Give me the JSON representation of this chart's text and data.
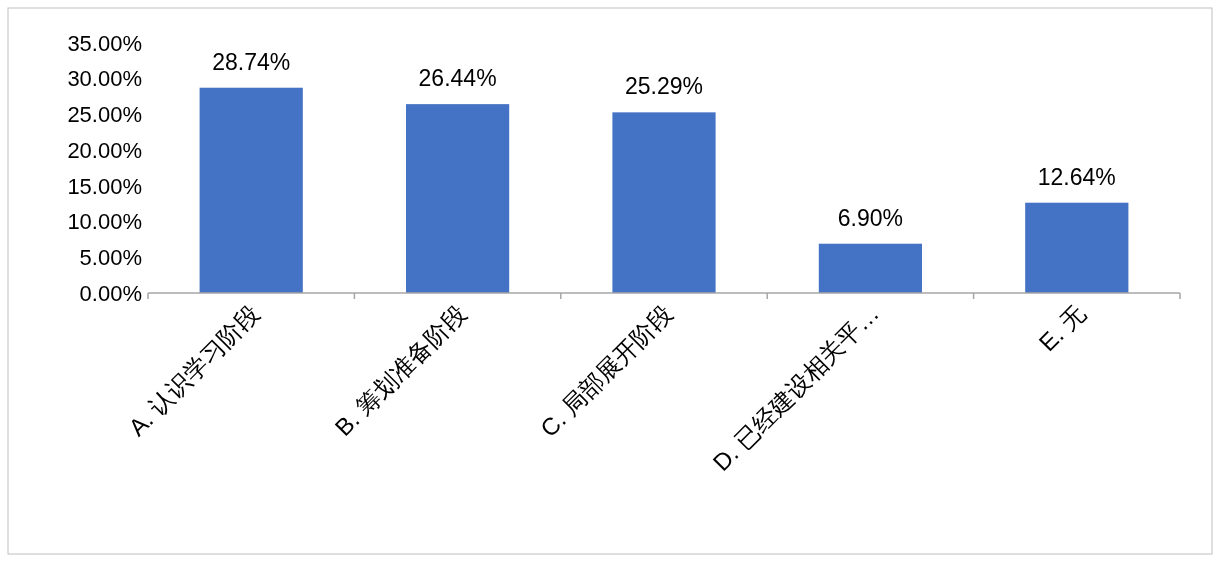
{
  "chart_data": {
    "type": "bar",
    "categories": [
      "A. 认识学习阶段",
      "B. 筹划准备阶段",
      "C. 局部展开阶段",
      "D. 已经建设相关平…",
      "E. 无"
    ],
    "values": [
      28.74,
      26.44,
      25.29,
      6.9,
      12.64
    ],
    "value_labels": [
      "28.74%",
      "26.44%",
      "25.29%",
      "6.90%",
      "12.64%"
    ],
    "color": "#4472c4",
    "ylim": [
      0,
      35
    ],
    "yticks": [
      {
        "value": 0,
        "label": "0.00%"
      },
      {
        "value": 5,
        "label": "5.00%"
      },
      {
        "value": 10,
        "label": "10.00%"
      },
      {
        "value": 15,
        "label": "15.00%"
      },
      {
        "value": 20,
        "label": "20.00%"
      },
      {
        "value": 25,
        "label": "25.00%"
      },
      {
        "value": 30,
        "label": "30.00%"
      },
      {
        "value": 35,
        "label": "35.00%"
      }
    ],
    "grid": false
  }
}
